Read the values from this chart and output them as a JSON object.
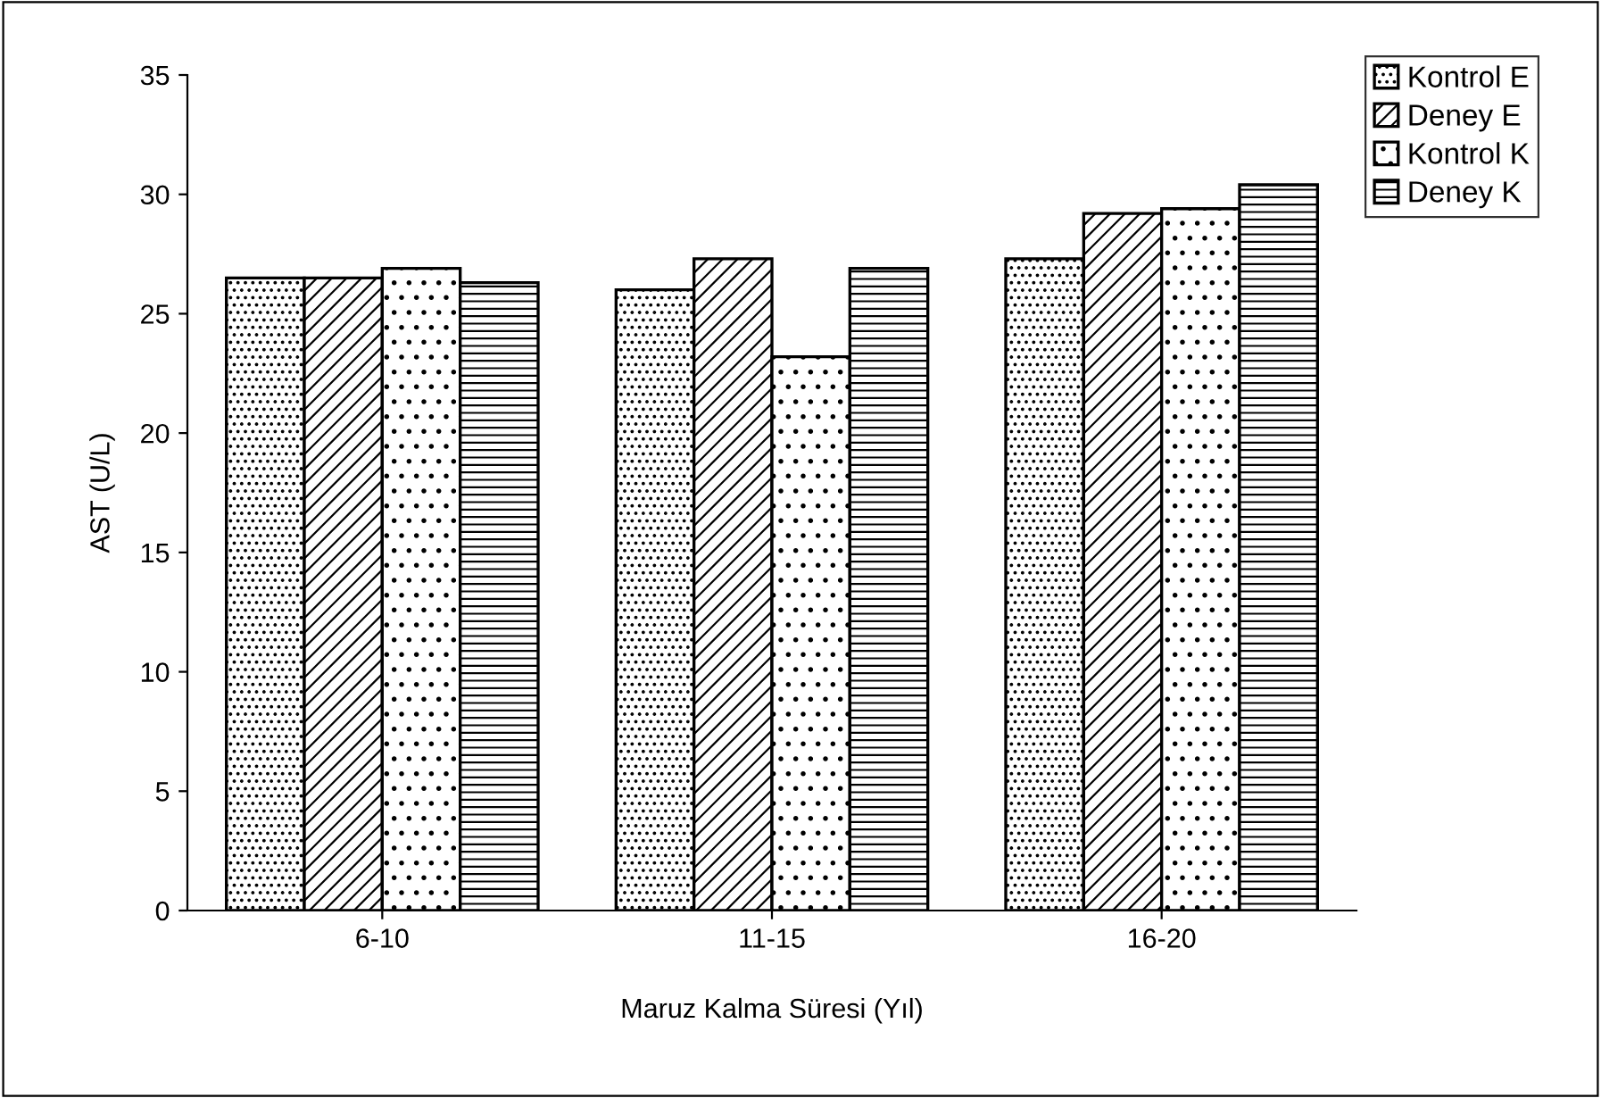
{
  "chart_data": {
    "type": "bar",
    "xlabel": "Maruz Kalma Süresi (Yıl)",
    "ylabel": "AST (U/L)",
    "categories": [
      "6-10",
      "11-15",
      "16-20"
    ],
    "series": [
      {
        "name": "Kontrol E",
        "color": "#000000",
        "values": [
          26.5,
          26.0,
          27.3
        ]
      },
      {
        "name": "Deney E",
        "color": "#000000",
        "values": [
          26.5,
          27.3,
          29.2
        ]
      },
      {
        "name": "Kontrol K",
        "color": "#000000",
        "values": [
          26.9,
          23.2,
          29.4
        ]
      },
      {
        "name": "Deney K",
        "color": "#000000",
        "values": [
          26.3,
          26.9,
          30.4
        ]
      }
    ],
    "ylim": [
      0,
      35
    ],
    "yticks": [
      0,
      5,
      10,
      15,
      20,
      25,
      30,
      35
    ],
    "grid": false,
    "legend": "top right"
  }
}
